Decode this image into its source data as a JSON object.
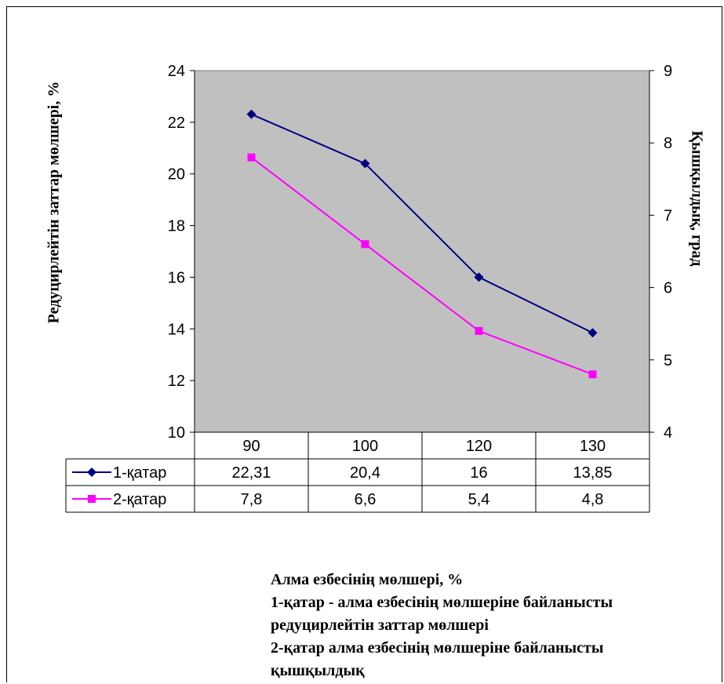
{
  "chart_data": {
    "type": "line",
    "categories": [
      "90",
      "100",
      "120",
      "130"
    ],
    "series": [
      {
        "name": "1-қатар",
        "values": [
          22.31,
          20.4,
          16,
          13.85
        ],
        "labels": [
          "22,31",
          "20,4",
          "16",
          "13,85"
        ],
        "axis": "left",
        "color": "#000080",
        "marker": "diamond"
      },
      {
        "name": "2-қатар",
        "values": [
          7.8,
          6.6,
          5.4,
          4.8
        ],
        "labels": [
          "7,8",
          "6,6",
          "5,4",
          "4,8"
        ],
        "axis": "right",
        "color": "#FF00FF",
        "marker": "square"
      }
    ],
    "ylabel": "Редуцирлейтін заттар мөлшері, %",
    "y2label": "Қышқылдық, град",
    "ylim": [
      10,
      24
    ],
    "yticks": [
      "10",
      "12",
      "14",
      "16",
      "18",
      "20",
      "22",
      "24"
    ],
    "y2lim": [
      4,
      9
    ],
    "y2ticks": [
      "4",
      "5",
      "6",
      "7",
      "8",
      "9"
    ],
    "plot_background": "#C0C0C0",
    "data_table": true
  },
  "caption": [
    "Алма езбесінің мөлшері, %",
    "1-қатар - алма езбесінің мөлшеріне байланысты",
    "редуцирлейтін заттар мөлшері",
    "2-қатар алма езбесінің мөлшеріне байланысты",
    "қышқылдық"
  ]
}
